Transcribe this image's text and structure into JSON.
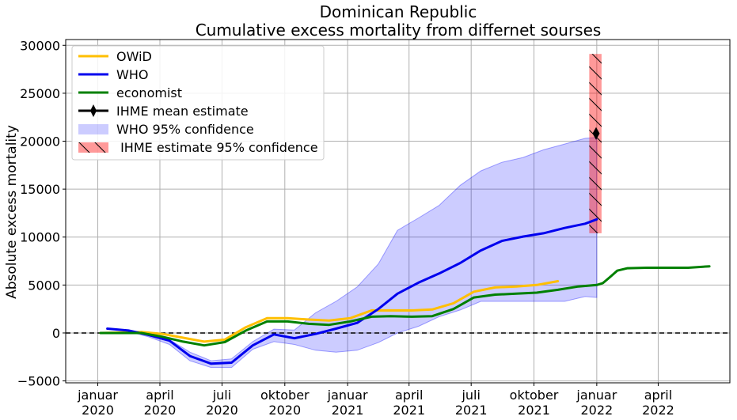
{
  "chart_data": {
    "type": "line",
    "title": "Dominican Republic",
    "subtitle": "Cumulative excess mortality from differnet sourses",
    "ylabel": "Absolute excess mortality",
    "xlabel": "",
    "ylim": [
      -5200,
      30600
    ],
    "xlim": [
      "2019-11-15",
      "2022-07-15"
    ],
    "grid": true,
    "legend_placement": "top-left",
    "y_ticks": [
      -5000,
      0,
      5000,
      10000,
      15000,
      20000,
      25000,
      30000
    ],
    "y_tick_labels": [
      "−5000",
      "0",
      "5000",
      "10000",
      "15000",
      "20000",
      "25000",
      "30000"
    ],
    "x_ticks": [
      {
        "date": "2020-01-01",
        "label": [
          "januar",
          "2020"
        ]
      },
      {
        "date": "2020-04-01",
        "label": [
          "april",
          "2020"
        ]
      },
      {
        "date": "2020-07-01",
        "label": [
          "juli",
          "2020"
        ]
      },
      {
        "date": "2020-10-01",
        "label": [
          "oktober",
          "2020"
        ]
      },
      {
        "date": "2021-01-01",
        "label": [
          "januar",
          "2021"
        ]
      },
      {
        "date": "2021-04-01",
        "label": [
          "april",
          "2021"
        ]
      },
      {
        "date": "2021-07-01",
        "label": [
          "juli",
          "2021"
        ]
      },
      {
        "date": "2021-10-01",
        "label": [
          "oktober",
          "2021"
        ]
      },
      {
        "date": "2022-01-01",
        "label": [
          "januar",
          "2022"
        ]
      },
      {
        "date": "2022-04-01",
        "label": [
          "april",
          "2022"
        ]
      }
    ],
    "reference_line": {
      "y": 0,
      "style": "dashed",
      "color": "#000000"
    },
    "series": [
      {
        "name": "OWiD",
        "color": "#ffbf00",
        "points": [
          [
            "2020-01-05",
            0
          ],
          [
            "2020-02-05",
            50
          ],
          [
            "2020-03-05",
            100
          ],
          [
            "2020-04-05",
            -100
          ],
          [
            "2020-05-05",
            -500
          ],
          [
            "2020-06-05",
            -900
          ],
          [
            "2020-07-05",
            -700
          ],
          [
            "2020-08-05",
            600
          ],
          [
            "2020-09-05",
            1550
          ],
          [
            "2020-10-05",
            1550
          ],
          [
            "2020-11-05",
            1400
          ],
          [
            "2020-12-05",
            1300
          ],
          [
            "2021-01-05",
            1550
          ],
          [
            "2021-02-05",
            2350
          ],
          [
            "2021-03-05",
            2350
          ],
          [
            "2021-04-05",
            2350
          ],
          [
            "2021-05-05",
            2450
          ],
          [
            "2021-06-05",
            3100
          ],
          [
            "2021-07-05",
            4300
          ],
          [
            "2021-08-05",
            4750
          ],
          [
            "2021-09-05",
            4850
          ],
          [
            "2021-10-05",
            5000
          ],
          [
            "2021-11-05",
            5400
          ]
        ]
      },
      {
        "name": "WHO",
        "color": "#0000ee",
        "points": [
          [
            "2020-01-15",
            450
          ],
          [
            "2020-02-15",
            250
          ],
          [
            "2020-03-15",
            -200
          ],
          [
            "2020-04-15",
            -800
          ],
          [
            "2020-05-15",
            -2400
          ],
          [
            "2020-06-15",
            -3200
          ],
          [
            "2020-07-15",
            -3100
          ],
          [
            "2020-08-15",
            -1300
          ],
          [
            "2020-09-15",
            -150
          ],
          [
            "2020-10-15",
            -550
          ],
          [
            "2020-11-15",
            -100
          ],
          [
            "2020-12-15",
            450
          ],
          [
            "2021-01-15",
            1050
          ],
          [
            "2021-02-15",
            2500
          ],
          [
            "2021-03-15",
            4100
          ],
          [
            "2021-04-15",
            5250
          ],
          [
            "2021-05-15",
            6200
          ],
          [
            "2021-06-15",
            7300
          ],
          [
            "2021-07-15",
            8600
          ],
          [
            "2021-08-15",
            9600
          ],
          [
            "2021-09-15",
            10050
          ],
          [
            "2021-10-15",
            10400
          ],
          [
            "2021-11-15",
            10950
          ],
          [
            "2021-12-15",
            11400
          ],
          [
            "2022-01-01",
            11850
          ]
        ]
      },
      {
        "name": "economist",
        "color": "#008000",
        "points": [
          [
            "2020-01-05",
            0
          ],
          [
            "2020-02-05",
            0
          ],
          [
            "2020-03-05",
            0
          ],
          [
            "2020-04-05",
            -400
          ],
          [
            "2020-05-05",
            -900
          ],
          [
            "2020-06-05",
            -1300
          ],
          [
            "2020-07-05",
            -950
          ],
          [
            "2020-08-05",
            250
          ],
          [
            "2020-09-05",
            1200
          ],
          [
            "2020-10-05",
            1200
          ],
          [
            "2020-11-05",
            950
          ],
          [
            "2020-12-05",
            850
          ],
          [
            "2021-01-05",
            1200
          ],
          [
            "2021-02-05",
            1700
          ],
          [
            "2021-03-05",
            1750
          ],
          [
            "2021-04-05",
            1700
          ],
          [
            "2021-05-05",
            1750
          ],
          [
            "2021-06-05",
            2500
          ],
          [
            "2021-07-05",
            3700
          ],
          [
            "2021-08-05",
            4000
          ],
          [
            "2021-09-05",
            4100
          ],
          [
            "2021-10-05",
            4200
          ],
          [
            "2021-11-05",
            4500
          ],
          [
            "2021-12-05",
            4850
          ],
          [
            "2022-01-01",
            5000
          ],
          [
            "2022-01-10",
            5200
          ],
          [
            "2022-01-20",
            5800
          ],
          [
            "2022-01-31",
            6500
          ],
          [
            "2022-02-15",
            6750
          ],
          [
            "2022-03-15",
            6800
          ],
          [
            "2022-04-15",
            6800
          ],
          [
            "2022-05-15",
            6800
          ],
          [
            "2022-06-15",
            6950
          ]
        ]
      }
    ],
    "who_band": {
      "name": "WHO 95% confidence",
      "color": "#0000ff",
      "opacity": 0.2,
      "upper": [
        [
          "2020-01-15",
          450
        ],
        [
          "2020-02-15",
          300
        ],
        [
          "2020-03-15",
          -200
        ],
        [
          "2020-04-15",
          -700
        ],
        [
          "2020-05-15",
          -2000
        ],
        [
          "2020-06-15",
          -2900
        ],
        [
          "2020-07-15",
          -2700
        ],
        [
          "2020-08-15",
          -900
        ],
        [
          "2020-09-15",
          400
        ],
        [
          "2020-10-15",
          300
        ],
        [
          "2020-11-15",
          2100
        ],
        [
          "2020-12-15",
          3300
        ],
        [
          "2021-01-15",
          4800
        ],
        [
          "2021-02-15",
          7200
        ],
        [
          "2021-03-15",
          10700
        ],
        [
          "2021-04-15",
          12000
        ],
        [
          "2021-05-15",
          13300
        ],
        [
          "2021-06-15",
          15400
        ],
        [
          "2021-07-15",
          16900
        ],
        [
          "2021-08-15",
          17800
        ],
        [
          "2021-09-15",
          18300
        ],
        [
          "2021-10-15",
          19100
        ],
        [
          "2021-11-15",
          19700
        ],
        [
          "2021-12-15",
          20300
        ],
        [
          "2022-01-01",
          20400
        ]
      ],
      "lower": [
        [
          "2020-01-15",
          450
        ],
        [
          "2020-02-15",
          150
        ],
        [
          "2020-03-15",
          -400
        ],
        [
          "2020-04-15",
          -1200
        ],
        [
          "2020-05-15",
          -2900
        ],
        [
          "2020-06-15",
          -3600
        ],
        [
          "2020-07-15",
          -3600
        ],
        [
          "2020-08-15",
          -1700
        ],
        [
          "2020-09-15",
          -900
        ],
        [
          "2020-10-15",
          -1200
        ],
        [
          "2020-11-15",
          -1800
        ],
        [
          "2020-12-15",
          -2000
        ],
        [
          "2021-01-15",
          -1800
        ],
        [
          "2021-02-15",
          -1000
        ],
        [
          "2021-03-15",
          0
        ],
        [
          "2021-04-15",
          700
        ],
        [
          "2021-05-15",
          1700
        ],
        [
          "2021-06-15",
          2400
        ],
        [
          "2021-07-15",
          3300
        ],
        [
          "2021-08-15",
          3300
        ],
        [
          "2021-09-15",
          3300
        ],
        [
          "2021-10-15",
          3300
        ],
        [
          "2021-11-15",
          3300
        ],
        [
          "2021-12-15",
          3800
        ],
        [
          "2022-01-01",
          3700
        ]
      ]
    },
    "ihme": {
      "mean_name": "IHME mean estimate",
      "ci_name": " IHME estimate 95% confidence",
      "date": "2021-12-31",
      "mean": 20800,
      "ci_low": 10400,
      "ci_high": 29100,
      "bar_start": "2021-12-21",
      "bar_end": "2022-01-08",
      "ci_color": "#ff0000",
      "ci_opacity": 0.4,
      "mean_color": "#000000"
    }
  }
}
